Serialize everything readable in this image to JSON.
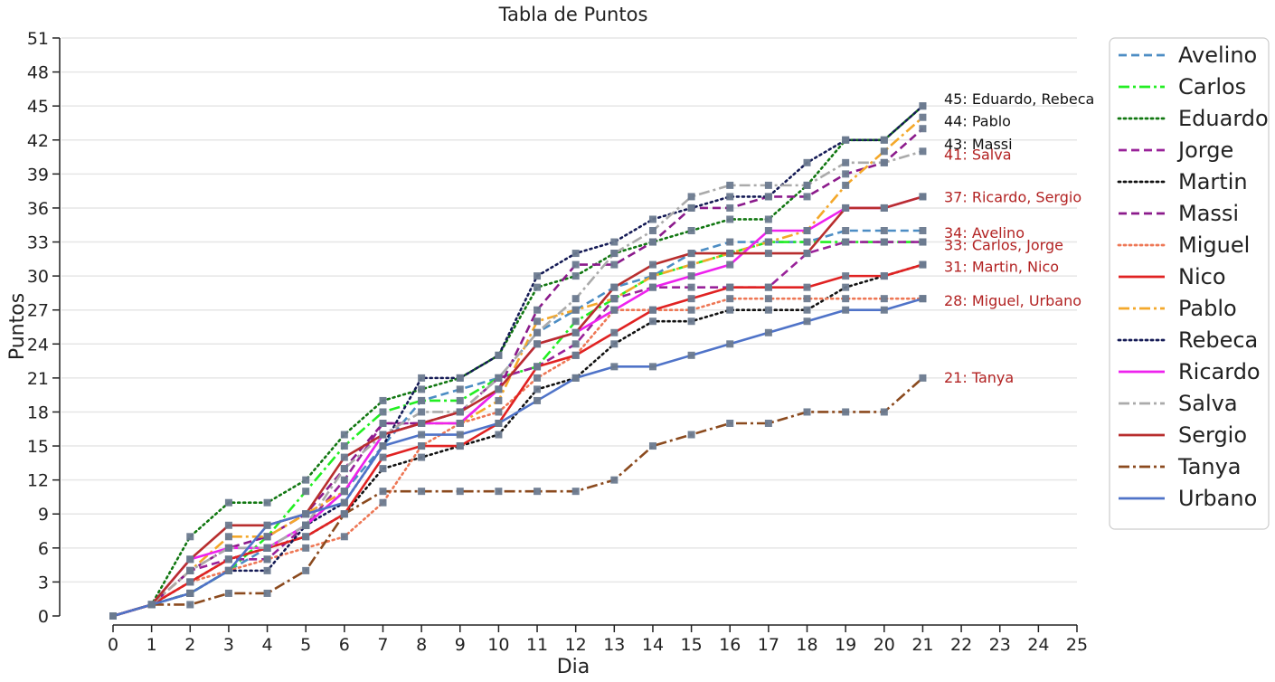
{
  "chart_data": {
    "type": "line",
    "title": "Tabla de Puntos",
    "xlabel": "Dia",
    "ylabel": "Puntos",
    "xlim": [
      0,
      25
    ],
    "ylim": [
      0,
      51
    ],
    "xticks": [
      0,
      1,
      2,
      3,
      4,
      5,
      6,
      7,
      8,
      9,
      10,
      11,
      12,
      13,
      14,
      15,
      16,
      17,
      18,
      19,
      20,
      21,
      22,
      23,
      24,
      25
    ],
    "yticks": [
      0,
      3,
      6,
      9,
      12,
      15,
      18,
      21,
      24,
      27,
      30,
      33,
      36,
      39,
      42,
      45,
      48,
      51
    ],
    "grid": "horizontal",
    "legend_position": "outside-right",
    "marker": "square",
    "marker_color": "#6b7a8f",
    "x": [
      0,
      1,
      2,
      3,
      4,
      5,
      6,
      7,
      8,
      9,
      10,
      11,
      12,
      13,
      14,
      15,
      16,
      17,
      18,
      19,
      20,
      21
    ],
    "series": [
      {
        "name": "Avelino",
        "color": "#4c8dc4",
        "dash": "dashed",
        "values": [
          0,
          1,
          2,
          4,
          6,
          8,
          11,
          15,
          19,
          20,
          21,
          25,
          27,
          29,
          30,
          32,
          33,
          33,
          33,
          34,
          34,
          34
        ]
      },
      {
        "name": "Carlos",
        "color": "#22ee22",
        "dash": "dashdot",
        "values": [
          0,
          1,
          2,
          4,
          7,
          11,
          15,
          18,
          19,
          19,
          21,
          22,
          26,
          28,
          30,
          31,
          32,
          33,
          33,
          33,
          33,
          33
        ]
      },
      {
        "name": "Eduardo",
        "color": "#117711",
        "dash": "dotted",
        "values": [
          0,
          1,
          7,
          10,
          10,
          12,
          16,
          19,
          20,
          21,
          23,
          29,
          30,
          32,
          33,
          34,
          35,
          35,
          38,
          42,
          42,
          45
        ]
      },
      {
        "name": "Jorge",
        "color": "#992299",
        "dash": "dashed",
        "values": [
          0,
          1,
          4,
          5,
          5,
          8,
          12,
          17,
          17,
          18,
          21,
          22,
          24,
          28,
          29,
          29,
          29,
          29,
          32,
          33,
          33,
          33
        ]
      },
      {
        "name": "Martin",
        "color": "#111111",
        "dash": "dotted",
        "values": [
          0,
          1,
          3,
          5,
          6,
          7,
          9,
          13,
          14,
          15,
          16,
          20,
          21,
          24,
          26,
          26,
          27,
          27,
          27,
          29,
          30,
          31
        ]
      },
      {
        "name": "Massi",
        "color": "#8b1a8b",
        "dash": "dashed",
        "values": [
          0,
          1,
          4,
          6,
          7,
          9,
          13,
          17,
          17,
          17,
          20,
          27,
          31,
          31,
          33,
          36,
          36,
          37,
          37,
          39,
          40,
          43
        ]
      },
      {
        "name": "Miguel",
        "color": "#ee7755",
        "dash": "dotted",
        "values": [
          0,
          1,
          3,
          4,
          5,
          6,
          7,
          10,
          15,
          17,
          18,
          21,
          23,
          27,
          27,
          27,
          28,
          28,
          28,
          28,
          28,
          28
        ]
      },
      {
        "name": "Nico",
        "color": "#e02222",
        "dash": "solid",
        "values": [
          0,
          1,
          3,
          5,
          6,
          7,
          9,
          14,
          15,
          15,
          17,
          22,
          23,
          25,
          27,
          28,
          29,
          29,
          29,
          30,
          30,
          31
        ]
      },
      {
        "name": "Pablo",
        "color": "#f4a82a",
        "dash": "dashdot",
        "values": [
          0,
          1,
          4,
          7,
          7,
          9,
          11,
          16,
          17,
          17,
          19,
          26,
          27,
          28,
          30,
          31,
          32,
          33,
          34,
          38,
          41,
          44
        ]
      },
      {
        "name": "Rebeca",
        "color": "#141a55",
        "dash": "dotted",
        "values": [
          0,
          1,
          2,
          4,
          4,
          8,
          10,
          15,
          21,
          21,
          23,
          30,
          32,
          33,
          35,
          36,
          37,
          37,
          40,
          42,
          42,
          45
        ]
      },
      {
        "name": "Ricardo",
        "color": "#ee22ee",
        "dash": "solid",
        "values": [
          0,
          1,
          5,
          6,
          6,
          8,
          11,
          16,
          17,
          17,
          20,
          24,
          25,
          27,
          29,
          30,
          31,
          34,
          34,
          36,
          36,
          37
        ]
      },
      {
        "name": "Salva",
        "color": "#aaaaaa",
        "dash": "dashdot",
        "values": [
          0,
          1,
          4,
          6,
          6,
          8,
          13,
          16,
          18,
          18,
          21,
          25,
          28,
          32,
          34,
          37,
          38,
          38,
          38,
          40,
          40,
          41
        ]
      },
      {
        "name": "Sergio",
        "color": "#b82e2e",
        "dash": "solid",
        "values": [
          0,
          1,
          5,
          8,
          8,
          9,
          14,
          16,
          17,
          18,
          20,
          24,
          25,
          29,
          31,
          32,
          32,
          32,
          32,
          36,
          36,
          37
        ]
      },
      {
        "name": "Tanya",
        "color": "#8b4a1e",
        "dash": "dashdot",
        "values": [
          0,
          1,
          1,
          2,
          2,
          4,
          9,
          11,
          11,
          11,
          11,
          11,
          11,
          12,
          15,
          16,
          17,
          17,
          18,
          18,
          18,
          21
        ]
      },
      {
        "name": "Urbano",
        "color": "#4f73c8",
        "dash": "solid",
        "values": [
          0,
          1,
          2,
          4,
          8,
          9,
          10,
          15,
          16,
          16,
          17,
          19,
          21,
          22,
          22,
          23,
          24,
          25,
          26,
          27,
          27,
          28
        ]
      }
    ],
    "annotations": [
      {
        "text": "45: Eduardo, Rebeca",
        "value": 45,
        "color": "#111111"
      },
      {
        "text": "44: Pablo",
        "value": 44,
        "color": "#111111"
      },
      {
        "text": "43: Massi",
        "value": 43,
        "color": "#111111"
      },
      {
        "text": "41: Salva",
        "value": 41,
        "color": "#b22222"
      },
      {
        "text": "37: Ricardo, Sergio",
        "value": 37,
        "color": "#b22222"
      },
      {
        "text": "34: Avelino",
        "value": 34,
        "color": "#b22222"
      },
      {
        "text": "33: Carlos, Jorge",
        "value": 33,
        "color": "#b22222"
      },
      {
        "text": "31: Martin, Nico",
        "value": 31,
        "color": "#b22222"
      },
      {
        "text": "28: Miguel, Urbano",
        "value": 28,
        "color": "#b22222"
      },
      {
        "text": "21: Tanya",
        "value": 21,
        "color": "#b22222"
      }
    ]
  }
}
